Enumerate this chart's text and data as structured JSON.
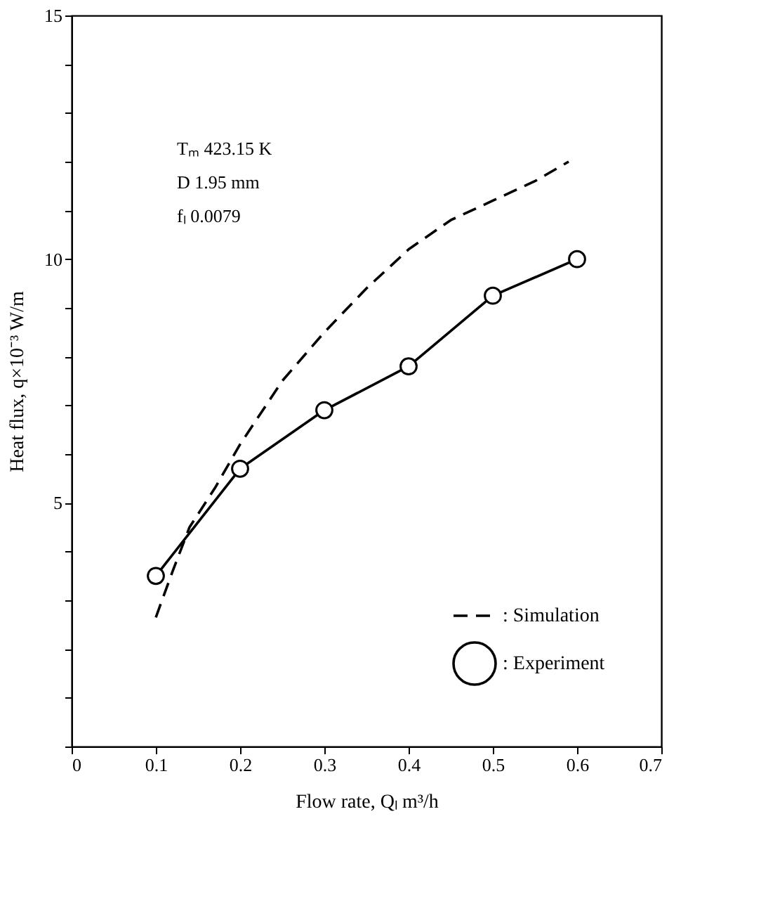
{
  "chart_data": {
    "type": "line",
    "xlabel": "Flow rate, Qₗ  m³/h",
    "ylabel": "Heat flux, q×10⁻³  W/m",
    "xlim": [
      0,
      0.7
    ],
    "xticks": [
      0,
      0.1,
      0.2,
      0.3,
      0.4,
      0.5,
      0.6,
      0.7
    ],
    "ylim": [
      0,
      15
    ],
    "yticks": [
      {
        "value": 0,
        "label": null
      },
      {
        "value": 1,
        "label": null
      },
      {
        "value": 2,
        "label": null
      },
      {
        "value": 3,
        "label": null
      },
      {
        "value": 4,
        "label": null
      },
      5,
      {
        "value": 6,
        "label": null
      },
      {
        "value": 7,
        "label": null
      },
      {
        "value": 8,
        "label": null
      },
      {
        "value": 9,
        "label": null
      },
      10,
      {
        "value": 11,
        "label": null
      },
      {
        "value": 12,
        "label": null
      },
      {
        "value": 13,
        "label": null
      },
      {
        "value": 14,
        "label": null
      },
      15
    ],
    "grid": false,
    "legend": "bottom right",
    "annotations": [
      "Tₘ   423.15  K",
      "D    1.95  mm",
      "fₗ    0.0079"
    ],
    "series": [
      {
        "name": ": Simulation",
        "color": "#000000",
        "line_style": "dashed",
        "marker": "none",
        "x": [
          0.1,
          0.12,
          0.14,
          0.17,
          0.2,
          0.25,
          0.3,
          0.35,
          0.4,
          0.45,
          0.5,
          0.55,
          0.59
        ],
        "values": [
          2.65,
          3.6,
          4.5,
          5.3,
          6.2,
          7.5,
          8.5,
          9.4,
          10.2,
          10.8,
          11.2,
          11.6,
          12.0
        ]
      },
      {
        "name": ": Experiment",
        "color": "#000000",
        "line_style": "solid",
        "marker": "circle",
        "x": [
          0.1,
          0.2,
          0.3,
          0.4,
          0.5,
          0.6
        ],
        "values": [
          3.5,
          5.7,
          6.9,
          7.8,
          9.25,
          10.0
        ]
      }
    ]
  }
}
